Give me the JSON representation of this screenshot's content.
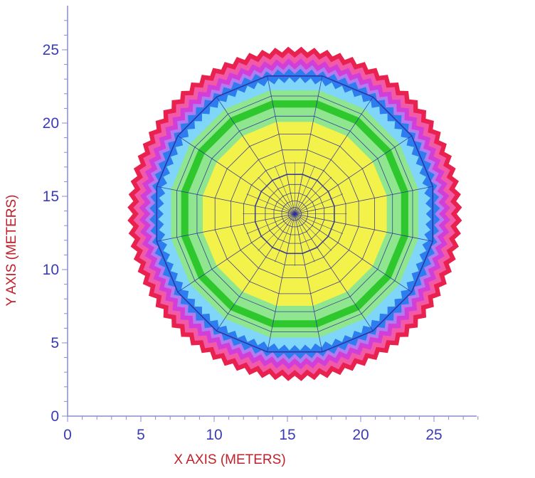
{
  "chart_data": {
    "type": "heatmap",
    "title": "",
    "xlabel": "X AXIS  (METERS)",
    "ylabel": "Y AXIS  (METERS)",
    "xlim": [
      0,
      28
    ],
    "ylim": [
      0,
      27.5
    ],
    "x_ticks": [
      0,
      5,
      10,
      15,
      20,
      25
    ],
    "y_ticks": [
      0,
      5,
      10,
      15,
      20,
      25
    ],
    "minor_tick_step": 1,
    "grid": false,
    "legend": "none",
    "center": {
      "x": 15.5,
      "y": 13.8
    },
    "contour_bands": [
      {
        "name": "red",
        "outer_radius": 11.3,
        "color": "#e8214e"
      },
      {
        "name": "pink",
        "outer_radius": 10.9,
        "color": "#f25aa8"
      },
      {
        "name": "magenta",
        "outer_radius": 10.5,
        "color": "#d23fd8"
      },
      {
        "name": "violet",
        "outer_radius": 10.1,
        "color": "#b07cf0"
      },
      {
        "name": "blue",
        "outer_radius": 9.8,
        "color": "#2e7df0"
      },
      {
        "name": "light-blue",
        "outer_radius": 9.2,
        "color": "#7fd6f8"
      },
      {
        "name": "light-green",
        "outer_radius": 8.6,
        "color": "#8fe68f"
      },
      {
        "name": "green",
        "outer_radius": 7.9,
        "color": "#2ec82e"
      },
      {
        "name": "light-green-inner",
        "outer_radius": 7.4,
        "color": "#8fe68f"
      },
      {
        "name": "yellow",
        "outer_radius": 6.4,
        "color": "#f2f24a"
      }
    ],
    "mesh": {
      "segments": 16,
      "rings": [
        0.45,
        0.9,
        1.45,
        2.05,
        2.75,
        3.55,
        4.45,
        5.55,
        6.8,
        8.2,
        9.6
      ],
      "color": "#2e2e99",
      "bold_rings": [
        2.75,
        9.6
      ]
    }
  }
}
